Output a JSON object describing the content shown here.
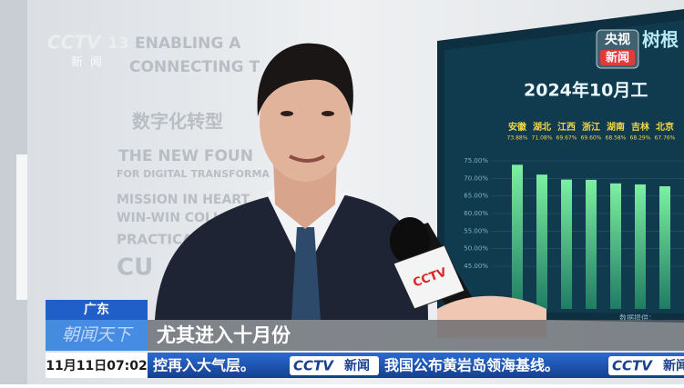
{
  "logo": {
    "channel": "CCTV",
    "number": "13",
    "sub": "新闻"
  },
  "corner_logo": {
    "line1": "央视",
    "line2": "新闻"
  },
  "wall_text": [
    "ENABLING A",
    "CONNECTING T",
    "数字化转型",
    "THE NEW FOUN",
    "FOR DIGITAL TRANSFORMA",
    "MISSION IN HEART",
    "WIN-WIN COLL",
    "PRACTICAL",
    "CU"
  ],
  "screen": {
    "brand": "树根",
    "title": "2024年10月工",
    "categories": [
      "安徽",
      "湖北",
      "江西",
      "浙江",
      "湖南",
      "吉林",
      "北京"
    ],
    "values": [
      73.88,
      71.08,
      69.67,
      69.6,
      68.58,
      68.29,
      67.76
    ],
    "value_labels": [
      "73.88%",
      "71.08%",
      "69.67%",
      "69.60%",
      "68.58%",
      "68.29%",
      "67.76%"
    ],
    "ylim": [
      45,
      75
    ],
    "yticks": [
      {
        "value": 75,
        "label": "75.00%"
      },
      {
        "value": 70,
        "label": "70.00%"
      },
      {
        "value": 65,
        "label": "65.00%"
      },
      {
        "value": 60,
        "label": "60.00%"
      },
      {
        "value": 55,
        "label": "55.00%"
      },
      {
        "value": 50,
        "label": "50.00%"
      },
      {
        "value": 45,
        "label": "45.00%"
      }
    ],
    "footnote": "数据提供："
  },
  "lower_third": {
    "region": "广东",
    "program": "朝闻天下",
    "caption": "尤其进入十月份"
  },
  "ticker": {
    "time": "11月11日07:02",
    "items": [
      "控再入大气层。",
      "我国公布黄岩岛领海基线。"
    ],
    "brand": "CCTV",
    "brand_sub": "新闻"
  }
}
